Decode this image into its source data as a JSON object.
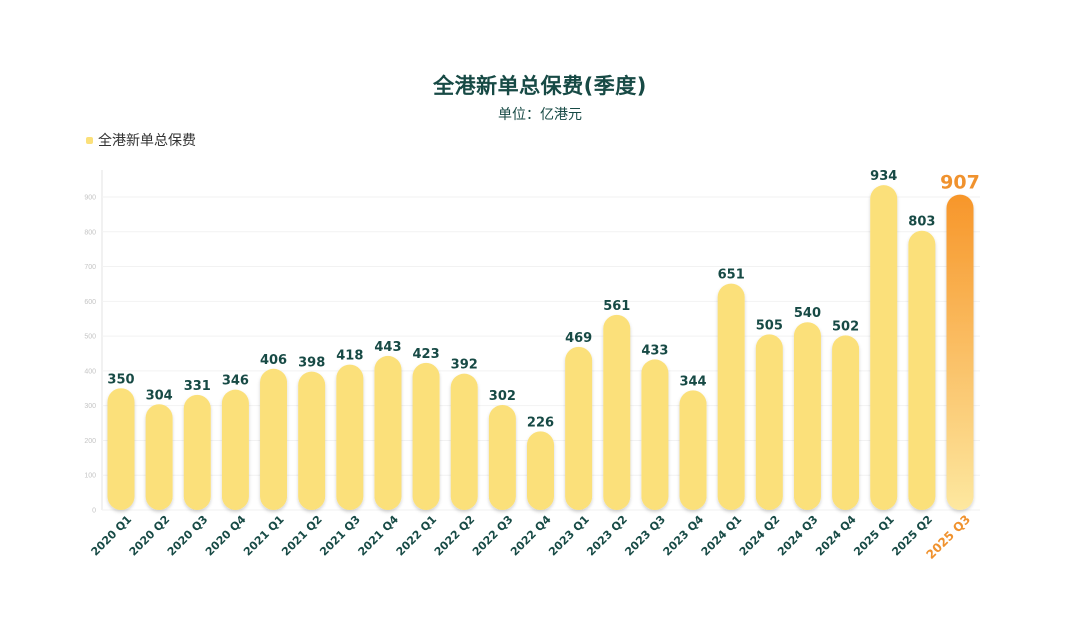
{
  "chart_data": {
    "type": "bar",
    "title": "全港新单总保费(季度)",
    "subtitle": "单位：亿港元",
    "legend": [
      "全港新单总保费"
    ],
    "legend_position": "top-left",
    "categories": [
      "2020 Q1",
      "2020 Q2",
      "2020 Q3",
      "2020 Q4",
      "2021 Q1",
      "2021 Q2",
      "2021 Q3",
      "2021 Q4",
      "2022 Q1",
      "2022 Q2",
      "2022 Q3",
      "2022 Q4",
      "2023 Q1",
      "2023 Q2",
      "2023 Q3",
      "2023 Q4",
      "2024 Q1",
      "2024 Q2",
      "2024 Q3",
      "2024 Q4",
      "2025 Q1",
      "2025 Q2",
      "2025 Q3"
    ],
    "series": [
      {
        "name": "全港新单总保费",
        "values": [
          350,
          304,
          331,
          346,
          406,
          398,
          418,
          443,
          423,
          392,
          302,
          226,
          469,
          561,
          433,
          344,
          651,
          505,
          540,
          502,
          934,
          803,
          907
        ]
      }
    ],
    "highlight": "2025 Q3",
    "ylim": [
      0,
      900
    ],
    "yticks": [
      "0",
      "100",
      "200",
      "300",
      "400",
      "500",
      "600",
      "700",
      "800",
      "900"
    ],
    "grid": true,
    "colors": {
      "bar": "#fbe07a",
      "highlight_top": "#f7962a",
      "highlight_bottom": "#fde8a0",
      "label": "#174a45",
      "highlight_label": "#f0922e",
      "axis": "#e3e3e3"
    }
  }
}
